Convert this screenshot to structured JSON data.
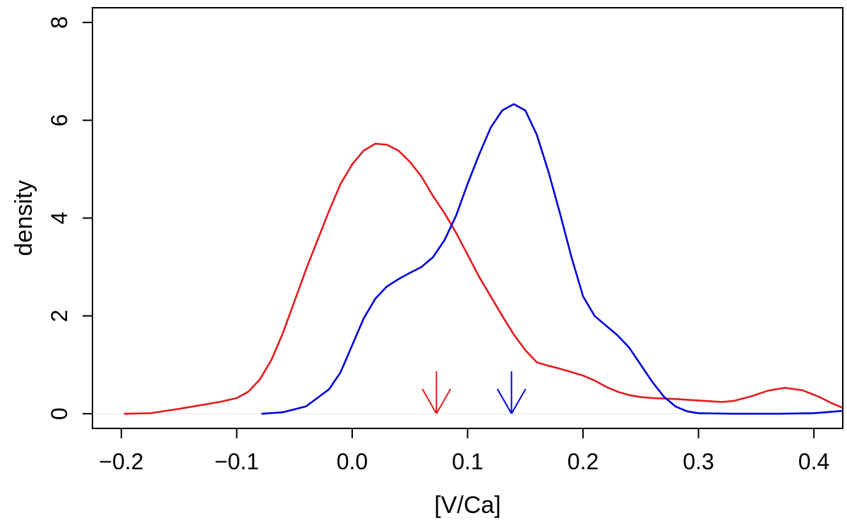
{
  "chart_data": {
    "type": "line",
    "title": "",
    "xlabel": "[V/Ca]",
    "ylabel": "density",
    "xlim": [
      -0.225,
      0.425
    ],
    "ylim": [
      -0.3,
      8.3
    ],
    "x_ticks": [
      -0.2,
      -0.1,
      0.0,
      0.1,
      0.2,
      0.3,
      0.4
    ],
    "x_tick_labels": [
      "−0.2",
      "−0.1",
      "0.0",
      "0.1",
      "0.2",
      "0.3",
      "0.4"
    ],
    "y_ticks": [
      0,
      2,
      4,
      6,
      8
    ],
    "y_tick_labels": [
      "0",
      "2",
      "4",
      "6",
      "8"
    ],
    "baseline": 0,
    "series": [
      {
        "name": "red density",
        "color": "#e41a1c",
        "points": [
          [
            -0.197,
            0.0
          ],
          [
            -0.175,
            0.01
          ],
          [
            -0.15,
            0.1
          ],
          [
            -0.13,
            0.18
          ],
          [
            -0.115,
            0.24
          ],
          [
            -0.1,
            0.32
          ],
          [
            -0.09,
            0.45
          ],
          [
            -0.08,
            0.7
          ],
          [
            -0.07,
            1.1
          ],
          [
            -0.06,
            1.65
          ],
          [
            -0.05,
            2.3
          ],
          [
            -0.04,
            2.95
          ],
          [
            -0.03,
            3.55
          ],
          [
            -0.02,
            4.15
          ],
          [
            -0.01,
            4.7
          ],
          [
            0.0,
            5.1
          ],
          [
            0.01,
            5.38
          ],
          [
            0.02,
            5.52
          ],
          [
            0.03,
            5.5
          ],
          [
            0.04,
            5.38
          ],
          [
            0.05,
            5.15
          ],
          [
            0.06,
            4.85
          ],
          [
            0.07,
            4.45
          ],
          [
            0.08,
            4.1
          ],
          [
            0.09,
            3.7
          ],
          [
            0.1,
            3.25
          ],
          [
            0.11,
            2.8
          ],
          [
            0.12,
            2.4
          ],
          [
            0.13,
            2.0
          ],
          [
            0.14,
            1.62
          ],
          [
            0.15,
            1.3
          ],
          [
            0.16,
            1.05
          ],
          [
            0.17,
            0.98
          ],
          [
            0.18,
            0.92
          ],
          [
            0.19,
            0.85
          ],
          [
            0.2,
            0.78
          ],
          [
            0.21,
            0.68
          ],
          [
            0.22,
            0.55
          ],
          [
            0.23,
            0.45
          ],
          [
            0.24,
            0.38
          ],
          [
            0.25,
            0.34
          ],
          [
            0.26,
            0.32
          ],
          [
            0.28,
            0.3
          ],
          [
            0.3,
            0.27
          ],
          [
            0.32,
            0.24
          ],
          [
            0.33,
            0.26
          ],
          [
            0.345,
            0.35
          ],
          [
            0.36,
            0.47
          ],
          [
            0.375,
            0.53
          ],
          [
            0.39,
            0.48
          ],
          [
            0.405,
            0.34
          ],
          [
            0.415,
            0.22
          ],
          [
            0.425,
            0.12
          ]
        ],
        "marker_x": 0.073
      },
      {
        "name": "blue density",
        "color": "#0000dd",
        "points": [
          [
            -0.078,
            0.0
          ],
          [
            -0.06,
            0.03
          ],
          [
            -0.04,
            0.15
          ],
          [
            -0.02,
            0.5
          ],
          [
            -0.01,
            0.85
          ],
          [
            0.0,
            1.4
          ],
          [
            0.01,
            1.95
          ],
          [
            0.02,
            2.35
          ],
          [
            0.03,
            2.6
          ],
          [
            0.04,
            2.75
          ],
          [
            0.05,
            2.88
          ],
          [
            0.06,
            3.0
          ],
          [
            0.07,
            3.2
          ],
          [
            0.08,
            3.55
          ],
          [
            0.09,
            4.05
          ],
          [
            0.1,
            4.7
          ],
          [
            0.11,
            5.3
          ],
          [
            0.12,
            5.85
          ],
          [
            0.13,
            6.2
          ],
          [
            0.14,
            6.33
          ],
          [
            0.15,
            6.2
          ],
          [
            0.16,
            5.7
          ],
          [
            0.17,
            4.95
          ],
          [
            0.18,
            4.1
          ],
          [
            0.19,
            3.2
          ],
          [
            0.2,
            2.4
          ],
          [
            0.21,
            2.0
          ],
          [
            0.22,
            1.8
          ],
          [
            0.23,
            1.6
          ],
          [
            0.24,
            1.35
          ],
          [
            0.25,
            1.0
          ],
          [
            0.26,
            0.65
          ],
          [
            0.27,
            0.35
          ],
          [
            0.28,
            0.15
          ],
          [
            0.29,
            0.05
          ],
          [
            0.3,
            0.01
          ],
          [
            0.33,
            0.0
          ],
          [
            0.37,
            0.0
          ],
          [
            0.4,
            0.01
          ],
          [
            0.425,
            0.06
          ]
        ],
        "marker_x": 0.138
      }
    ]
  }
}
